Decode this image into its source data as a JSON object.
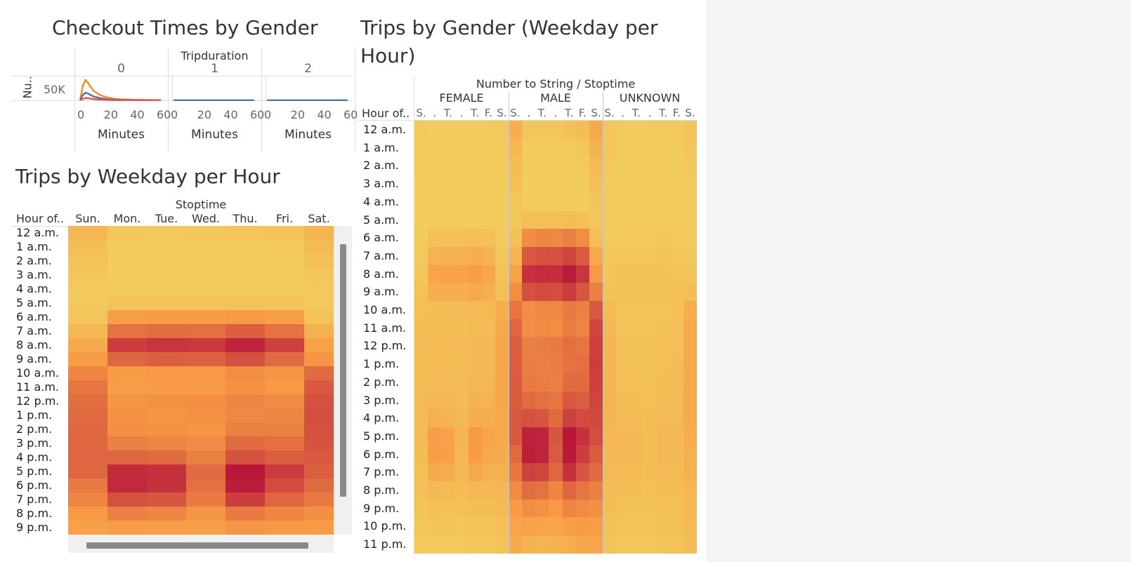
{
  "dashboard": {
    "checkout_title": "Checkout Times by Gender",
    "weekday_title": "Trips by Weekday per Hour",
    "gender_title_line1": "Trips by Gender (Weekday per",
    "gender_title_line2": "Hour)"
  },
  "colors": {
    "low": "#f2cd5e",
    "mid": "#f89a45",
    "high": "#b8173a",
    "female_line": "#e15759",
    "male_line": "#f28e2b",
    "unknown_line": "#4e79a7"
  },
  "chart_data": [
    {
      "type": "line",
      "title": "Checkout Times by Gender",
      "column_field": "Tripduration",
      "columns": [
        "0",
        "1",
        "2"
      ],
      "xlabel": "Minutes",
      "ylabel": "Nu..",
      "x_ticks": [
        "0",
        "20",
        "40",
        "60"
      ],
      "y_ticks": [
        "50K"
      ],
      "ylim": [
        0,
        100000
      ],
      "x": [
        0,
        2,
        4,
        6,
        8,
        10,
        15,
        20,
        25,
        30,
        40,
        50,
        60
      ],
      "panels": [
        {
          "column": "0",
          "series": [
            {
              "color": "#f28e2b",
              "values": [
                0,
                60000,
                85000,
                72000,
                55000,
                40000,
                22000,
                12000,
                7000,
                4500,
                2500,
                1500,
                1000
              ]
            },
            {
              "color": "#4e79a7",
              "values": [
                0,
                22000,
                32000,
                28000,
                22000,
                16000,
                9000,
                5000,
                3000,
                2000,
                1000,
                600,
                400
              ]
            },
            {
              "color": "#e15759",
              "values": [
                0,
                6000,
                10000,
                9000,
                7000,
                5000,
                3000,
                1800,
                1000,
                700,
                400,
                250,
                150
              ]
            }
          ]
        },
        {
          "column": "1",
          "series": [
            {
              "color": "#4e79a7",
              "values": [
                200,
                200,
                200,
                200,
                200,
                200,
                200,
                200,
                200,
                200,
                200,
                200,
                200
              ]
            }
          ]
        },
        {
          "column": "2",
          "series": [
            {
              "color": "#4e79a7",
              "values": [
                150,
                150,
                150,
                150,
                150,
                150,
                150,
                150,
                150,
                150,
                150,
                150,
                150
              ]
            }
          ]
        }
      ]
    },
    {
      "type": "heatmap",
      "title": "Trips by Weekday per Hour",
      "column_field": "Stoptime",
      "row_header": "Hour of..",
      "columns": [
        "Sun.",
        "Mon.",
        "Tue.",
        "Wed.",
        "Thu.",
        "Fri.",
        "Sat."
      ],
      "rows": [
        "12 a.m.",
        "1 a.m.",
        "2 a.m.",
        "3 a.m.",
        "4 a.m.",
        "5 a.m.",
        "6 a.m.",
        "7 a.m.",
        "8 a.m.",
        "9 a.m.",
        "10 a.m.",
        "11 a.m.",
        "12 p.m.",
        "1 p.m.",
        "2 p.m.",
        "3 p.m.",
        "4 p.m.",
        "5 p.m.",
        "6 p.m.",
        "7 p.m.",
        "8 p.m.",
        "9 p.m."
      ],
      "values": [
        [
          22,
          6,
          5,
          6,
          8,
          10,
          25
        ],
        [
          15,
          3,
          2,
          2,
          3,
          5,
          18
        ],
        [
          10,
          1,
          1,
          1,
          1,
          2,
          12
        ],
        [
          8,
          0,
          0,
          0,
          0,
          1,
          8
        ],
        [
          5,
          1,
          1,
          1,
          1,
          1,
          5
        ],
        [
          5,
          10,
          10,
          10,
          11,
          9,
          5
        ],
        [
          8,
          45,
          48,
          47,
          50,
          45,
          10
        ],
        [
          20,
          65,
          67,
          66,
          72,
          65,
          28
        ],
        [
          35,
          85,
          88,
          87,
          95,
          84,
          42
        ],
        [
          48,
          70,
          72,
          71,
          78,
          68,
          52
        ],
        [
          58,
          48,
          50,
          50,
          55,
          52,
          68
        ],
        [
          64,
          46,
          48,
          47,
          53,
          50,
          75
        ],
        [
          67,
          52,
          53,
          54,
          58,
          56,
          78
        ],
        [
          68,
          53,
          52,
          53,
          57,
          58,
          79
        ],
        [
          69,
          54,
          53,
          52,
          60,
          60,
          78
        ],
        [
          69,
          60,
          58,
          56,
          68,
          66,
          77
        ],
        [
          70,
          70,
          68,
          60,
          78,
          73,
          75
        ],
        [
          70,
          92,
          90,
          68,
          100,
          86,
          73
        ],
        [
          62,
          93,
          90,
          66,
          98,
          80,
          68
        ],
        [
          58,
          78,
          76,
          62,
          85,
          70,
          62
        ],
        [
          50,
          60,
          58,
          52,
          62,
          58,
          54
        ],
        [
          42,
          48,
          46,
          44,
          52,
          50,
          48
        ]
      ],
      "scale": [
        0,
        100
      ]
    },
    {
      "type": "heatmap",
      "title": "Trips by Gender (Weekday per Hour)",
      "column_field": "Number to String / Stoptime",
      "row_header": "Hour of..",
      "groups": [
        "FEMALE",
        "MALE",
        "UNKNOWN"
      ],
      "weekday_labels": [
        "S.",
        ".",
        "T.",
        ".",
        "T.",
        "F.",
        "S."
      ],
      "rows": [
        "12 a.m.",
        "1 a.m.",
        "2 a.m.",
        "3 a.m.",
        "4 a.m.",
        "5 a.m.",
        "6 a.m.",
        "7 a.m.",
        "8 a.m.",
        "9 a.m.",
        "10 a.m.",
        "11 a.m.",
        "12 p.m.",
        "1 p.m.",
        "2 p.m.",
        "3 p.m.",
        "4 p.m.",
        "5 p.m.",
        "6 p.m.",
        "7 p.m.",
        "8 p.m.",
        "9 p.m.",
        "10 p.m.",
        "11 p.m."
      ],
      "values": {
        "FEMALE": [
          [
            4,
            1,
            1,
            1,
            2,
            2,
            5
          ],
          [
            3,
            0,
            0,
            0,
            0,
            1,
            4
          ],
          [
            2,
            0,
            0,
            0,
            0,
            0,
            3
          ],
          [
            1,
            0,
            0,
            0,
            0,
            0,
            2
          ],
          [
            1,
            0,
            0,
            0,
            0,
            0,
            1
          ],
          [
            1,
            2,
            2,
            2,
            2,
            2,
            1
          ],
          [
            2,
            12,
            13,
            13,
            14,
            12,
            3
          ],
          [
            4,
            25,
            27,
            26,
            30,
            25,
            6
          ],
          [
            7,
            40,
            42,
            41,
            46,
            38,
            10
          ],
          [
            10,
            30,
            31,
            30,
            34,
            29,
            14
          ],
          [
            14,
            16,
            17,
            17,
            19,
            18,
            30
          ],
          [
            16,
            15,
            16,
            15,
            18,
            17,
            36
          ],
          [
            17,
            18,
            18,
            19,
            21,
            20,
            38
          ],
          [
            18,
            18,
            17,
            18,
            20,
            21,
            38
          ],
          [
            18,
            19,
            18,
            17,
            22,
            22,
            37
          ],
          [
            18,
            22,
            21,
            19,
            26,
            25,
            37
          ],
          [
            19,
            27,
            26,
            22,
            31,
            29,
            36
          ],
          [
            19,
            45,
            43,
            24,
            50,
            40,
            35
          ],
          [
            16,
            46,
            44,
            23,
            48,
            36,
            32
          ],
          [
            14,
            32,
            31,
            21,
            36,
            28,
            28
          ],
          [
            12,
            20,
            19,
            16,
            22,
            20,
            22
          ],
          [
            9,
            14,
            13,
            12,
            16,
            15,
            18
          ],
          [
            7,
            9,
            9,
            8,
            11,
            11,
            14
          ],
          [
            5,
            5,
            5,
            5,
            7,
            8,
            10
          ]
        ],
        "MALE": [
          [
            30,
            8,
            7,
            8,
            12,
            15,
            35
          ],
          [
            22,
            3,
            3,
            3,
            5,
            7,
            26
          ],
          [
            15,
            2,
            1,
            2,
            2,
            4,
            18
          ],
          [
            12,
            1,
            1,
            1,
            1,
            2,
            13
          ],
          [
            8,
            1,
            1,
            1,
            1,
            1,
            9
          ],
          [
            7,
            14,
            14,
            14,
            15,
            13,
            8
          ],
          [
            12,
            55,
            58,
            57,
            60,
            55,
            14
          ],
          [
            25,
            75,
            78,
            77,
            82,
            74,
            35
          ],
          [
            42,
            90,
            92,
            91,
            98,
            88,
            50
          ],
          [
            55,
            78,
            80,
            79,
            86,
            76,
            60
          ],
          [
            64,
            55,
            57,
            57,
            62,
            60,
            75
          ],
          [
            70,
            54,
            56,
            55,
            61,
            58,
            82
          ],
          [
            72,
            60,
            61,
            62,
            66,
            64,
            84
          ],
          [
            73,
            61,
            60,
            61,
            65,
            66,
            85
          ],
          [
            74,
            62,
            61,
            60,
            68,
            68,
            84
          ],
          [
            74,
            68,
            66,
            64,
            75,
            73,
            83
          ],
          [
            75,
            78,
            76,
            68,
            84,
            80,
            81
          ],
          [
            75,
            96,
            95,
            76,
            100,
            90,
            79
          ],
          [
            68,
            97,
            95,
            74,
            99,
            85,
            74
          ],
          [
            63,
            84,
            82,
            69,
            90,
            76,
            68
          ],
          [
            56,
            67,
            65,
            58,
            69,
            64,
            60
          ],
          [
            48,
            55,
            53,
            50,
            58,
            56,
            54
          ],
          [
            40,
            42,
            41,
            40,
            46,
            48,
            46
          ],
          [
            32,
            26,
            25,
            26,
            30,
            38,
            40
          ]
        ],
        "UNKNOWN": [
          [
            8,
            3,
            3,
            3,
            4,
            5,
            10
          ],
          [
            6,
            2,
            2,
            2,
            2,
            3,
            8
          ],
          [
            5,
            1,
            1,
            1,
            1,
            2,
            6
          ],
          [
            4,
            1,
            1,
            1,
            1,
            1,
            5
          ],
          [
            3,
            1,
            1,
            1,
            1,
            1,
            4
          ],
          [
            3,
            2,
            2,
            2,
            2,
            2,
            3
          ],
          [
            4,
            5,
            5,
            5,
            6,
            5,
            5
          ],
          [
            6,
            8,
            8,
            8,
            9,
            8,
            7
          ],
          [
            9,
            12,
            12,
            12,
            13,
            11,
            10
          ],
          [
            13,
            12,
            12,
            12,
            13,
            12,
            15
          ],
          [
            18,
            10,
            10,
            10,
            11,
            12,
            30
          ],
          [
            22,
            11,
            11,
            11,
            12,
            13,
            34
          ],
          [
            24,
            13,
            13,
            13,
            14,
            14,
            35
          ],
          [
            25,
            13,
            13,
            13,
            14,
            15,
            35
          ],
          [
            25,
            14,
            14,
            13,
            15,
            16,
            34
          ],
          [
            25,
            15,
            15,
            14,
            17,
            17,
            33
          ],
          [
            24,
            17,
            17,
            15,
            19,
            19,
            32
          ],
          [
            23,
            21,
            20,
            16,
            22,
            21,
            30
          ],
          [
            21,
            21,
            20,
            16,
            22,
            20,
            28
          ],
          [
            19,
            18,
            18,
            15,
            19,
            18,
            26
          ],
          [
            17,
            15,
            15,
            13,
            16,
            16,
            23
          ],
          [
            15,
            13,
            13,
            12,
            14,
            14,
            21
          ],
          [
            13,
            11,
            11,
            11,
            12,
            13,
            19
          ],
          [
            11,
            8,
            8,
            8,
            9,
            11,
            16
          ]
        ]
      },
      "scale": [
        0,
        100
      ]
    }
  ]
}
